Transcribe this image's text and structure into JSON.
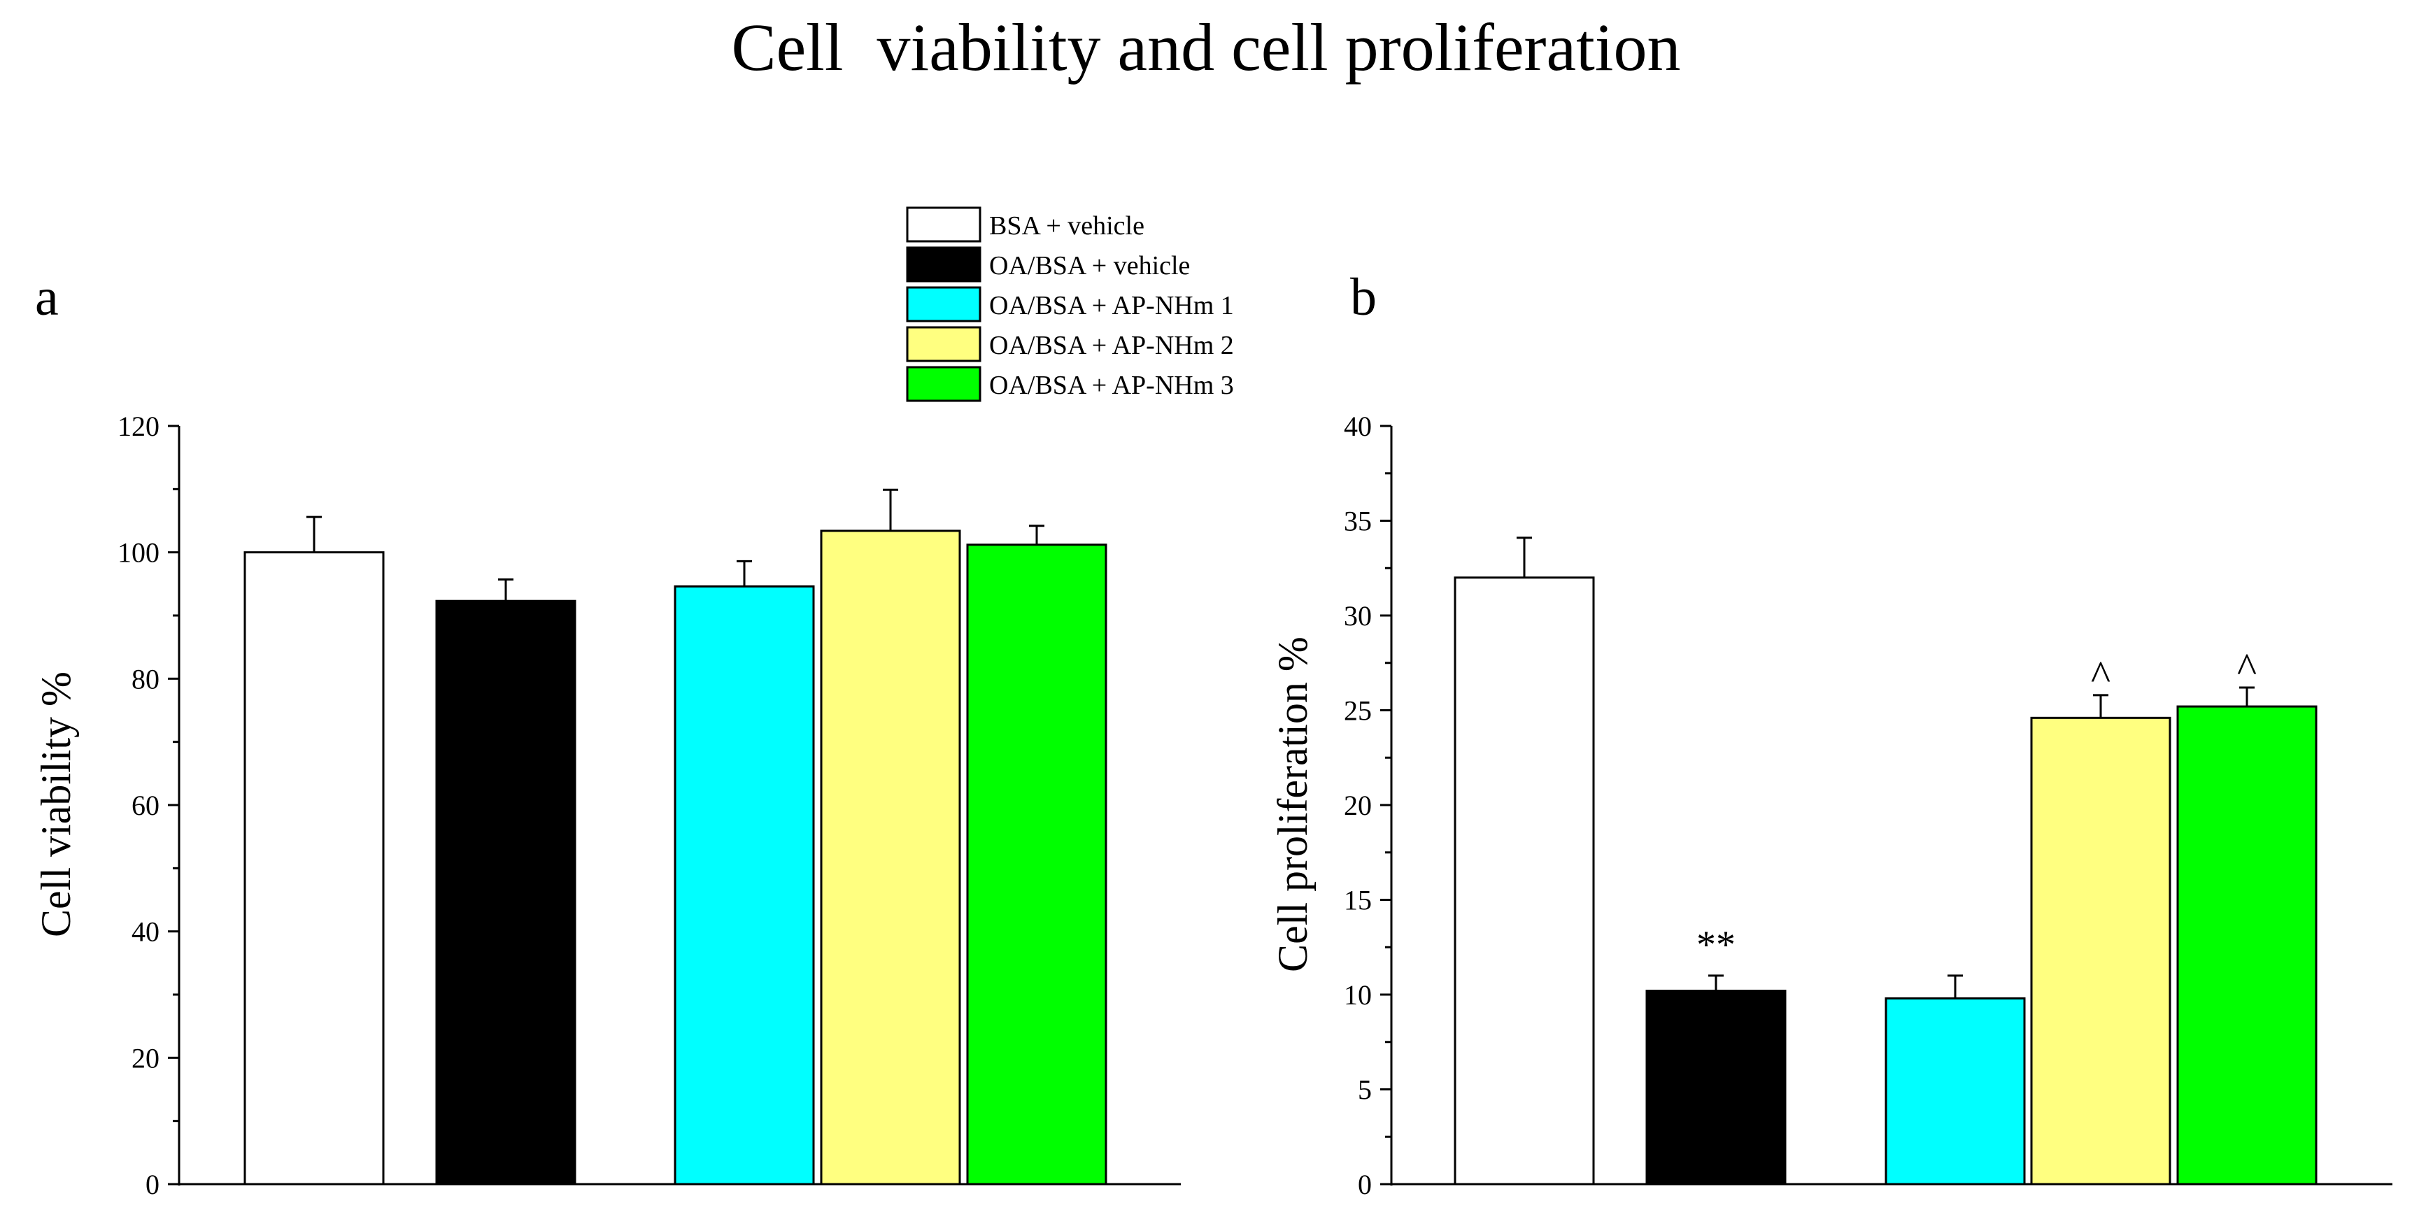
{
  "figure": {
    "title": "Cell  viability and cell proliferation"
  },
  "legend": {
    "entries": [
      {
        "label": "BSA + vehicle",
        "color": "#ffffff"
      },
      {
        "label": "OA/BSA + vehicle",
        "color": "#000000"
      },
      {
        "label": "OA/BSA + AP-NHm 1",
        "color": "#00ffff"
      },
      {
        "label": "OA/BSA + AP-NHm 2",
        "color": "#ffff80"
      },
      {
        "label": "OA/BSA + AP-NHm 3",
        "color": "#00ff00"
      }
    ]
  },
  "chart_data": [
    {
      "panel_label": "a",
      "type": "bar",
      "title": "",
      "xlabel": "",
      "ylabel": "Cell viability %",
      "ylim": [
        0,
        120
      ],
      "yticks": [
        0,
        20,
        40,
        60,
        80,
        100,
        120
      ],
      "grid": false,
      "categories": [
        "BSA + vehicle",
        "OA/BSA + vehicle",
        "OA/BSA + AP-NHm 1",
        "OA/BSA + AP-NHm 2",
        "OA/BSA + AP-NHm 3"
      ],
      "values": [
        100,
        92.3,
        94.6,
        103.4,
        101.2
      ],
      "errors": [
        5.6,
        3.4,
        4.0,
        6.5,
        3.0
      ],
      "annotations": [
        "",
        "",
        "",
        "",
        ""
      ]
    },
    {
      "panel_label": "b",
      "type": "bar",
      "title": "",
      "xlabel": "",
      "ylabel": "Cell proliferation %",
      "ylim": [
        0,
        40
      ],
      "yticks": [
        0,
        5,
        10,
        15,
        20,
        25,
        30,
        35,
        40
      ],
      "grid": false,
      "categories": [
        "BSA + vehicle",
        "OA/BSA + vehicle",
        "OA/BSA + AP-NHm 1",
        "OA/BSA + AP-NHm 2",
        "OA/BSA + AP-NHm 3"
      ],
      "values": [
        32.0,
        10.2,
        9.8,
        24.6,
        25.2
      ],
      "errors": [
        2.1,
        0.8,
        1.2,
        1.2,
        1.0
      ],
      "annotations": [
        "",
        "**",
        "",
        "^",
        "^"
      ]
    }
  ]
}
